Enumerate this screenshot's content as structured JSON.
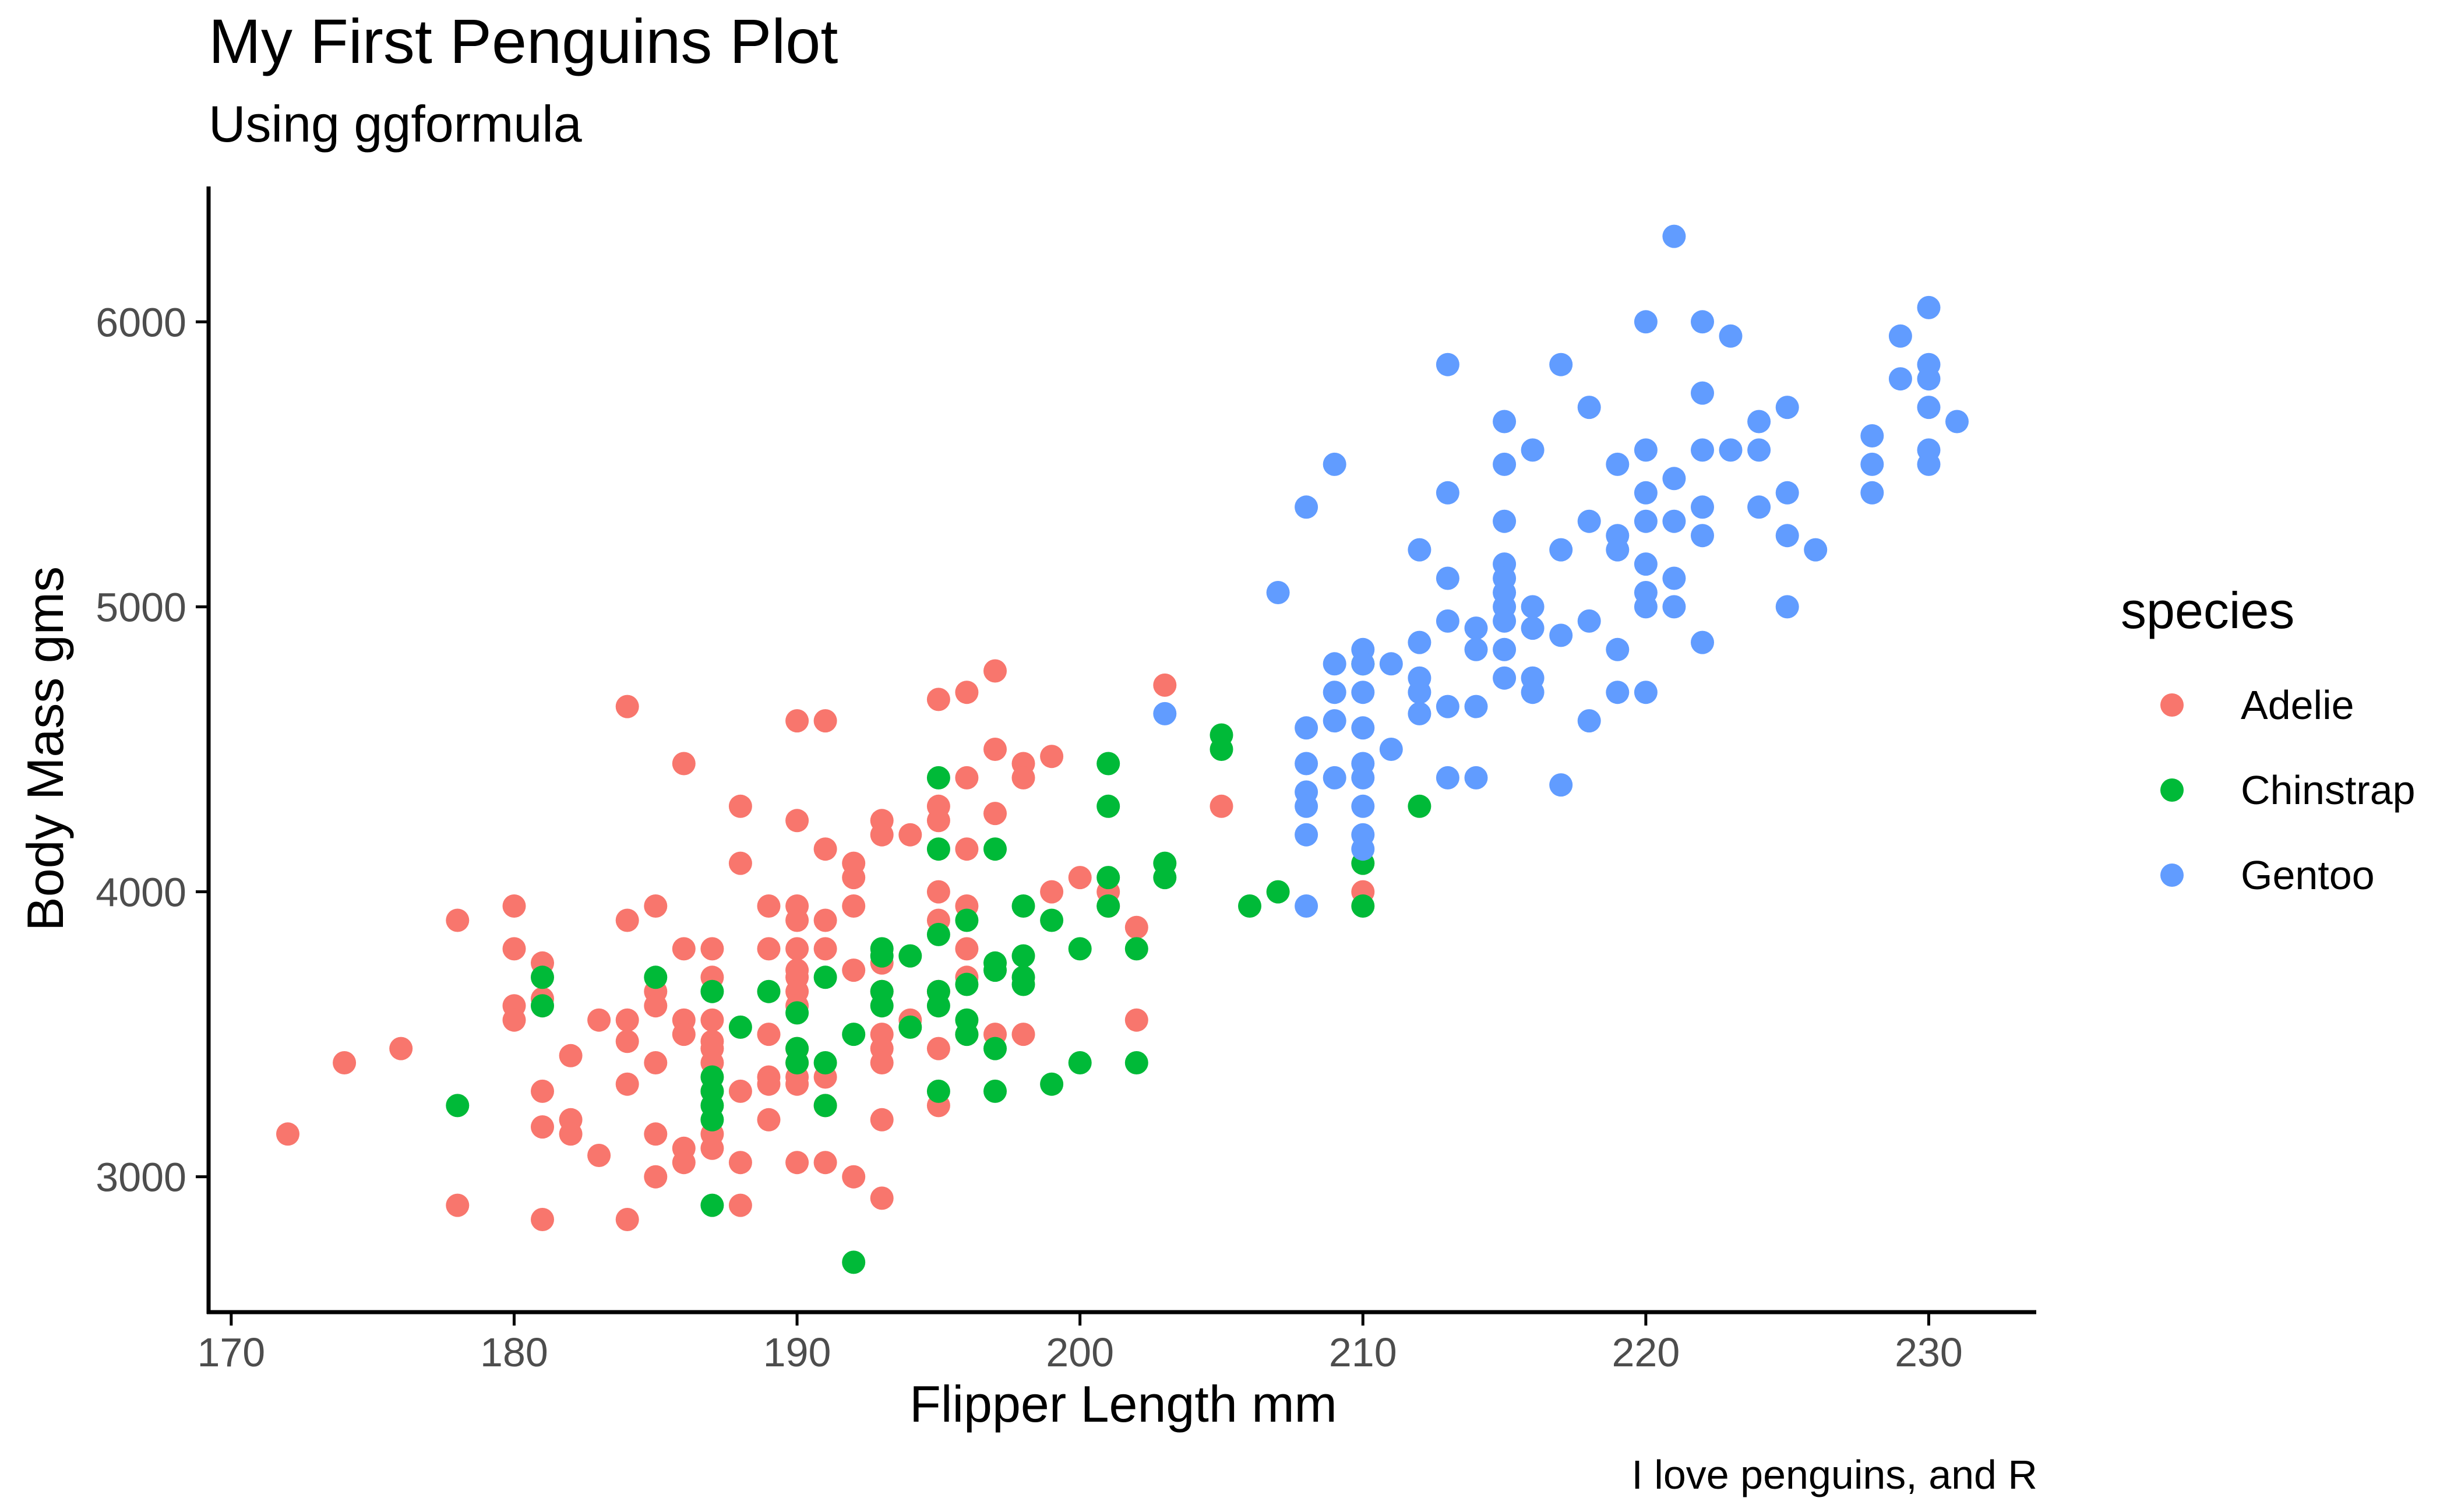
{
  "chart_data": {
    "type": "scatter",
    "title": "My First Penguins Plot",
    "subtitle": "Using ggformula",
    "caption": "I love penguins, and R",
    "xlabel": "Flipper Length mm",
    "ylabel": "Body Mass gms",
    "xlim": [
      169.2,
      233.8
    ],
    "ylim": [
      2525,
      6475
    ],
    "x_ticks": [
      170,
      180,
      190,
      200,
      210,
      220,
      230
    ],
    "y_ticks": [
      3000,
      4000,
      5000,
      6000
    ],
    "grid": false,
    "legend": {
      "title": "species",
      "position": "right",
      "entries": [
        "Adelie",
        "Chinstrap",
        "Gentoo"
      ]
    },
    "series": [
      {
        "name": "Adelie",
        "color": "#F8766D",
        "points": [
          [
            172,
            3150
          ],
          [
            174,
            3400
          ],
          [
            176,
            3450
          ],
          [
            178,
            3900
          ],
          [
            178,
            2900
          ],
          [
            180,
            3950
          ],
          [
            180,
            3800
          ],
          [
            180,
            3600
          ],
          [
            180,
            3550
          ],
          [
            181,
            3750
          ],
          [
            181,
            3625
          ],
          [
            181,
            3300
          ],
          [
            181,
            3175
          ],
          [
            181,
            2850
          ],
          [
            182,
            3425
          ],
          [
            182,
            3200
          ],
          [
            182,
            3150
          ],
          [
            183,
            3550
          ],
          [
            183,
            3075
          ],
          [
            184,
            4650
          ],
          [
            184,
            3900
          ],
          [
            184,
            3550
          ],
          [
            184,
            3475
          ],
          [
            184,
            3325
          ],
          [
            184,
            2850
          ],
          [
            185,
            3950
          ],
          [
            185,
            3650
          ],
          [
            185,
            3600
          ],
          [
            185,
            3400
          ],
          [
            185,
            3150
          ],
          [
            185,
            3000
          ],
          [
            186,
            4450
          ],
          [
            186,
            3800
          ],
          [
            186,
            3550
          ],
          [
            186,
            3500
          ],
          [
            186,
            3100
          ],
          [
            186,
            3050
          ],
          [
            187,
            3800
          ],
          [
            187,
            3700
          ],
          [
            187,
            3550
          ],
          [
            187,
            3475
          ],
          [
            187,
            3450
          ],
          [
            187,
            3400
          ],
          [
            187,
            3300
          ],
          [
            187,
            3150
          ],
          [
            187,
            3100
          ],
          [
            188,
            4300
          ],
          [
            188,
            4100
          ],
          [
            188,
            3300
          ],
          [
            188,
            3050
          ],
          [
            188,
            2900
          ],
          [
            189,
            3950
          ],
          [
            189,
            3800
          ],
          [
            189,
            3500
          ],
          [
            189,
            3350
          ],
          [
            189,
            3325
          ],
          [
            189,
            3200
          ],
          [
            190,
            4600
          ],
          [
            190,
            4250
          ],
          [
            190,
            3950
          ],
          [
            190,
            3900
          ],
          [
            190,
            3800
          ],
          [
            190,
            3725
          ],
          [
            190,
            3700
          ],
          [
            190,
            3650
          ],
          [
            190,
            3600
          ],
          [
            190,
            3450
          ],
          [
            190,
            3400
          ],
          [
            190,
            3350
          ],
          [
            190,
            3325
          ],
          [
            190,
            3050
          ],
          [
            191,
            4600
          ],
          [
            191,
            4150
          ],
          [
            191,
            3900
          ],
          [
            191,
            3800
          ],
          [
            191,
            3350
          ],
          [
            191,
            3250
          ],
          [
            191,
            3050
          ],
          [
            192,
            4100
          ],
          [
            192,
            4050
          ],
          [
            192,
            3950
          ],
          [
            192,
            3725
          ],
          [
            192,
            3000
          ],
          [
            193,
            4250
          ],
          [
            193,
            4200
          ],
          [
            193,
            3750
          ],
          [
            193,
            3650
          ],
          [
            193,
            3500
          ],
          [
            193,
            3450
          ],
          [
            193,
            3400
          ],
          [
            193,
            3200
          ],
          [
            193,
            2925
          ],
          [
            194,
            4200
          ],
          [
            194,
            3550
          ],
          [
            195,
            4675
          ],
          [
            195,
            4300
          ],
          [
            195,
            4250
          ],
          [
            195,
            4000
          ],
          [
            195,
            3900
          ],
          [
            195,
            3650
          ],
          [
            195,
            3450
          ],
          [
            195,
            3250
          ],
          [
            196,
            4700
          ],
          [
            196,
            4400
          ],
          [
            196,
            4150
          ],
          [
            196,
            3950
          ],
          [
            196,
            3800
          ],
          [
            196,
            3700
          ],
          [
            196,
            3500
          ],
          [
            197,
            4775
          ],
          [
            197,
            4500
          ],
          [
            197,
            4275
          ],
          [
            197,
            3500
          ],
          [
            198,
            4450
          ],
          [
            198,
            4400
          ],
          [
            198,
            3500
          ],
          [
            199,
            4475
          ],
          [
            199,
            4000
          ],
          [
            200,
            4050
          ],
          [
            201,
            4000
          ],
          [
            201,
            3950
          ],
          [
            202,
            3875
          ],
          [
            202,
            3550
          ],
          [
            203,
            4725
          ],
          [
            205,
            4300
          ],
          [
            210,
            4000
          ]
        ]
      },
      {
        "name": "Chinstrap",
        "color": "#00BA38",
        "points": [
          [
            178,
            3250
          ],
          [
            181,
            3700
          ],
          [
            181,
            3600
          ],
          [
            185,
            3700
          ],
          [
            187,
            3650
          ],
          [
            187,
            3350
          ],
          [
            187,
            3300
          ],
          [
            187,
            3250
          ],
          [
            187,
            3200
          ],
          [
            187,
            2900
          ],
          [
            188,
            3525
          ],
          [
            189,
            3650
          ],
          [
            190,
            3575
          ],
          [
            190,
            3450
          ],
          [
            190,
            3400
          ],
          [
            191,
            3700
          ],
          [
            191,
            3400
          ],
          [
            191,
            3250
          ],
          [
            192,
            3500
          ],
          [
            192,
            2700
          ],
          [
            193,
            3800
          ],
          [
            193,
            3775
          ],
          [
            193,
            3650
          ],
          [
            193,
            3600
          ],
          [
            194,
            3775
          ],
          [
            194,
            3525
          ],
          [
            195,
            4400
          ],
          [
            195,
            4150
          ],
          [
            195,
            3850
          ],
          [
            195,
            3650
          ],
          [
            195,
            3600
          ],
          [
            195,
            3300
          ],
          [
            196,
            3900
          ],
          [
            196,
            3675
          ],
          [
            196,
            3550
          ],
          [
            196,
            3500
          ],
          [
            197,
            4150
          ],
          [
            197,
            3750
          ],
          [
            197,
            3725
          ],
          [
            197,
            3450
          ],
          [
            197,
            3300
          ],
          [
            198,
            3950
          ],
          [
            198,
            3775
          ],
          [
            198,
            3700
          ],
          [
            198,
            3675
          ],
          [
            199,
            3900
          ],
          [
            199,
            3325
          ],
          [
            200,
            3800
          ],
          [
            200,
            3400
          ],
          [
            201,
            4450
          ],
          [
            201,
            4300
          ],
          [
            201,
            4050
          ],
          [
            201,
            3950
          ],
          [
            202,
            3800
          ],
          [
            202,
            3400
          ],
          [
            203,
            4100
          ],
          [
            203,
            4050
          ],
          [
            205,
            4550
          ],
          [
            205,
            4500
          ],
          [
            206,
            3950
          ],
          [
            207,
            4000
          ],
          [
            210,
            4800
          ],
          [
            210,
            4100
          ],
          [
            210,
            3950
          ],
          [
            212,
            4300
          ]
        ]
      },
      {
        "name": "Gentoo",
        "color": "#619CFF",
        "points": [
          [
            203,
            4625
          ],
          [
            207,
            5050
          ],
          [
            208,
            5350
          ],
          [
            208,
            4575
          ],
          [
            208,
            4450
          ],
          [
            208,
            4350
          ],
          [
            208,
            4300
          ],
          [
            208,
            4200
          ],
          [
            208,
            3950
          ],
          [
            209,
            5500
          ],
          [
            209,
            4800
          ],
          [
            209,
            4700
          ],
          [
            209,
            4600
          ],
          [
            209,
            4400
          ],
          [
            210,
            4850
          ],
          [
            210,
            4800
          ],
          [
            210,
            4700
          ],
          [
            210,
            4575
          ],
          [
            210,
            4450
          ],
          [
            210,
            4400
          ],
          [
            210,
            4300
          ],
          [
            210,
            4200
          ],
          [
            210,
            4150
          ],
          [
            211,
            4800
          ],
          [
            211,
            4500
          ],
          [
            212,
            5200
          ],
          [
            212,
            4875
          ],
          [
            212,
            4750
          ],
          [
            212,
            4700
          ],
          [
            212,
            4625
          ],
          [
            213,
            5850
          ],
          [
            213,
            5400
          ],
          [
            213,
            5100
          ],
          [
            213,
            4950
          ],
          [
            213,
            4650
          ],
          [
            213,
            4400
          ],
          [
            214,
            4925
          ],
          [
            214,
            4850
          ],
          [
            214,
            4650
          ],
          [
            214,
            4400
          ],
          [
            215,
            5650
          ],
          [
            215,
            5500
          ],
          [
            215,
            5300
          ],
          [
            215,
            5150
          ],
          [
            215,
            5100
          ],
          [
            215,
            5050
          ],
          [
            215,
            5000
          ],
          [
            215,
            4950
          ],
          [
            215,
            4850
          ],
          [
            215,
            4750
          ],
          [
            216,
            5550
          ],
          [
            216,
            5000
          ],
          [
            216,
            4925
          ],
          [
            216,
            4750
          ],
          [
            216,
            4700
          ],
          [
            217,
            5850
          ],
          [
            217,
            5200
          ],
          [
            217,
            4900
          ],
          [
            217,
            4375
          ],
          [
            218,
            5700
          ],
          [
            218,
            5300
          ],
          [
            218,
            4950
          ],
          [
            218,
            4600
          ],
          [
            219,
            5500
          ],
          [
            219,
            5250
          ],
          [
            219,
            5200
          ],
          [
            219,
            4850
          ],
          [
            219,
            4700
          ],
          [
            220,
            6000
          ],
          [
            220,
            5550
          ],
          [
            220,
            5400
          ],
          [
            220,
            5300
          ],
          [
            220,
            5150
          ],
          [
            220,
            5050
          ],
          [
            220,
            5000
          ],
          [
            220,
            4700
          ],
          [
            221,
            6300
          ],
          [
            221,
            5450
          ],
          [
            221,
            5300
          ],
          [
            221,
            5100
          ],
          [
            221,
            5000
          ],
          [
            222,
            6000
          ],
          [
            222,
            5750
          ],
          [
            222,
            5550
          ],
          [
            222,
            5350
          ],
          [
            222,
            5250
          ],
          [
            222,
            4875
          ],
          [
            223,
            5950
          ],
          [
            223,
            5550
          ],
          [
            224,
            5650
          ],
          [
            224,
            5550
          ],
          [
            224,
            5350
          ],
          [
            225,
            5700
          ],
          [
            225,
            5400
          ],
          [
            225,
            5250
          ],
          [
            225,
            5000
          ],
          [
            226,
            5200
          ],
          [
            228,
            5600
          ],
          [
            228,
            5500
          ],
          [
            228,
            5400
          ],
          [
            229,
            5950
          ],
          [
            229,
            5800
          ],
          [
            230,
            6050
          ],
          [
            230,
            5850
          ],
          [
            230,
            5800
          ],
          [
            230,
            5700
          ],
          [
            230,
            5550
          ],
          [
            230,
            5500
          ],
          [
            231,
            5650
          ]
        ]
      }
    ]
  }
}
